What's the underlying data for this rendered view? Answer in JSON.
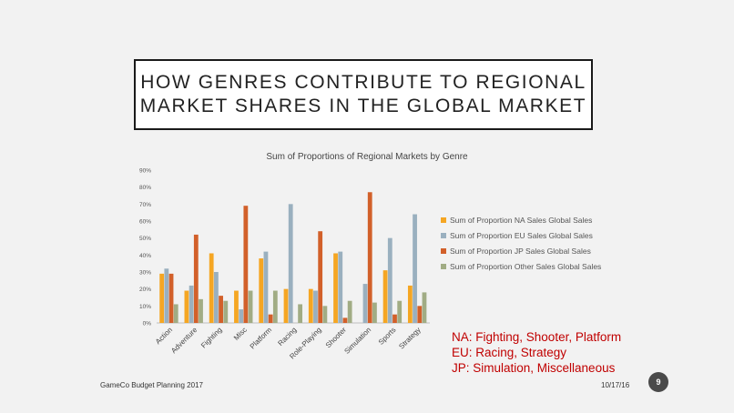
{
  "slide": {
    "title": "HOW GENRES CONTRIBUTE TO REGIONAL\nMARKET SHARES IN THE GLOBAL MARKET",
    "footer_left": "GameCo Budget Planning 2017",
    "footer_date": "10/17/16",
    "page_number": "9",
    "notes": [
      "NA: Fighting, Shooter, Platform",
      "EU: Racing, Strategy",
      "JP: Simulation, Miscellaneous"
    ]
  },
  "chart_data": {
    "type": "bar",
    "title": "Sum of Proportions of Regional Markets by Genre",
    "categories": [
      "Action",
      "Adventure",
      "Fighting",
      "Misc",
      "Platform",
      "Racing",
      "Role-Playing",
      "Shooter",
      "Simulation",
      "Sports",
      "Strategy"
    ],
    "y_ticks": [
      "0%",
      "10%",
      "20%",
      "30%",
      "40%",
      "50%",
      "60%",
      "70%",
      "80%",
      "90%"
    ],
    "ylim": [
      0,
      90
    ],
    "legend_position": "right",
    "grid": false,
    "series": [
      {
        "name": "Sum of Proportion NA Sales Global Sales",
        "color": "#f5a623",
        "values": [
          29,
          19,
          41,
          19,
          38,
          20,
          20,
          41,
          0,
          31,
          22
        ]
      },
      {
        "name": "Sum of Proportion EU Sales Global Sales",
        "color": "#9ab0bf",
        "values": [
          32,
          22,
          30,
          8,
          42,
          70,
          19,
          42,
          23,
          50,
          64
        ]
      },
      {
        "name": "Sum of Proportion JP Sales Global Sales",
        "color": "#d2602a",
        "values": [
          29,
          52,
          16,
          69,
          5,
          0,
          54,
          3,
          77,
          5,
          10
        ]
      },
      {
        "name": "Sum of Proportion Other Sales Global Sales",
        "color": "#a1ac84",
        "values": [
          11,
          14,
          13,
          19,
          19,
          11,
          10,
          13,
          12,
          13,
          18
        ]
      }
    ]
  }
}
